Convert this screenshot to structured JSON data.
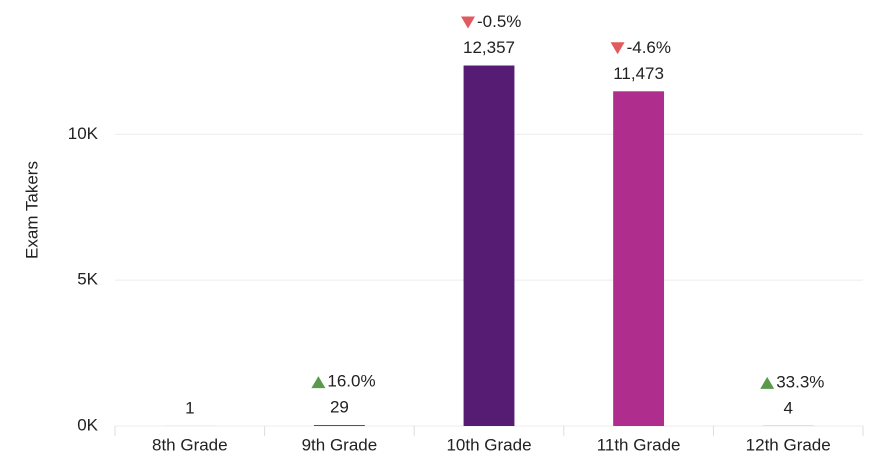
{
  "chart_data": {
    "type": "bar",
    "y_axis_label": "Exam Takers",
    "categories": [
      "8th Grade",
      "9th Grade",
      "10th Grade",
      "11th Grade",
      "12th Grade"
    ],
    "values": [
      1,
      29,
      12357,
      11473,
      4
    ],
    "value_labels": [
      "1",
      "29",
      "12,357",
      "11,473",
      "4"
    ],
    "changes": [
      null,
      16.0,
      -0.5,
      -4.6,
      33.3
    ],
    "change_labels": [
      null,
      "16.0%",
      "-0.5%",
      "-4.6%",
      "33.3%"
    ],
    "colors": [
      "#4a1f6e",
      "#4a1f6e",
      "#561b73",
      "#ae2d8d",
      "#4a1f6e"
    ],
    "up_color": "#5a9a4c",
    "down_color": "#e05a5f",
    "ylim": [
      0,
      14500
    ],
    "yticks": [
      {
        "value": 0,
        "label": "0K"
      },
      {
        "value": 5000,
        "label": "5K"
      },
      {
        "value": 10000,
        "label": "10K"
      }
    ],
    "grid": true
  }
}
